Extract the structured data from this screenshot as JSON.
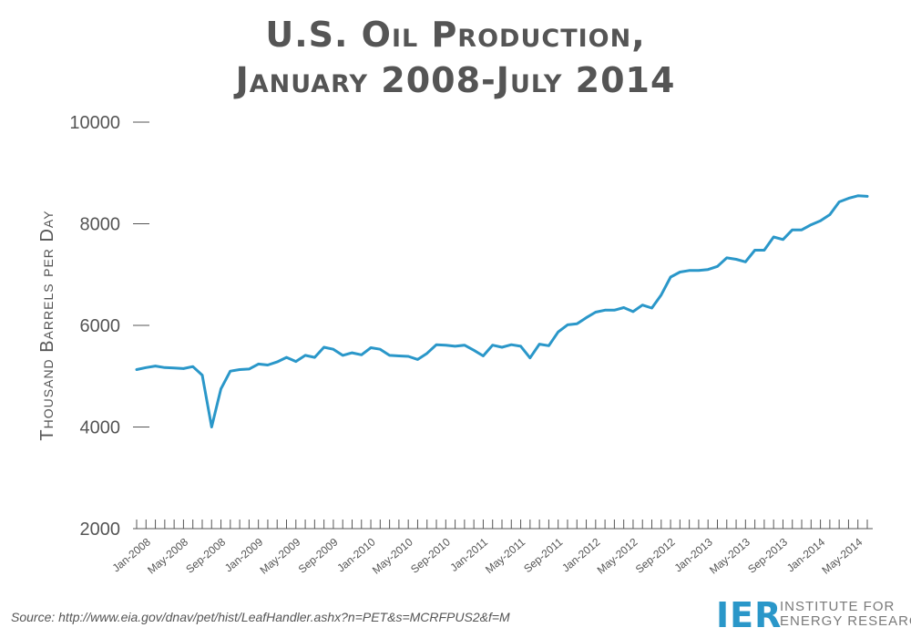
{
  "chart_data": {
    "type": "line",
    "title": "U.S. Oil Production,",
    "subtitle": "January 2008-July 2014",
    "ylabel": "Thousand Barrels per Day",
    "xlabel": "",
    "ylim": [
      2000,
      10000
    ],
    "yticks": [
      2000,
      4000,
      6000,
      8000,
      10000
    ],
    "grid": false,
    "line_color": "#2a97c9",
    "xtick_labels": [
      "Jan-2008",
      "May-2008",
      "Sep-2008",
      "Jan-2009",
      "May-2009",
      "Sep-2009",
      "Jan-2010",
      "May-2010",
      "Sep-2010",
      "Jan-2011",
      "May-2011",
      "Sep-2011",
      "Jan-2012",
      "May-2012",
      "Sep-2012",
      "Jan-2013",
      "May-2013",
      "Sep-2013",
      "Jan-2014",
      "May-2014"
    ],
    "x": [
      "Jan-2008",
      "Feb-2008",
      "Mar-2008",
      "Apr-2008",
      "May-2008",
      "Jun-2008",
      "Jul-2008",
      "Aug-2008",
      "Sep-2008",
      "Oct-2008",
      "Nov-2008",
      "Dec-2008",
      "Jan-2009",
      "Feb-2009",
      "Mar-2009",
      "Apr-2009",
      "May-2009",
      "Jun-2009",
      "Jul-2009",
      "Aug-2009",
      "Sep-2009",
      "Oct-2009",
      "Nov-2009",
      "Dec-2009",
      "Jan-2010",
      "Feb-2010",
      "Mar-2010",
      "Apr-2010",
      "May-2010",
      "Jun-2010",
      "Jul-2010",
      "Aug-2010",
      "Sep-2010",
      "Oct-2010",
      "Nov-2010",
      "Dec-2010",
      "Jan-2011",
      "Feb-2011",
      "Mar-2011",
      "Apr-2011",
      "May-2011",
      "Jun-2011",
      "Jul-2011",
      "Aug-2011",
      "Sep-2011",
      "Oct-2011",
      "Nov-2011",
      "Dec-2011",
      "Jan-2012",
      "Feb-2012",
      "Mar-2012",
      "Apr-2012",
      "May-2012",
      "Jun-2012",
      "Jul-2012",
      "Aug-2012",
      "Sep-2012",
      "Oct-2012",
      "Nov-2012",
      "Dec-2012",
      "Jan-2013",
      "Feb-2013",
      "Mar-2013",
      "Apr-2013",
      "May-2013",
      "Jun-2013",
      "Jul-2013",
      "Aug-2013",
      "Sep-2013",
      "Oct-2013",
      "Nov-2013",
      "Dec-2013",
      "Jan-2014",
      "Feb-2014",
      "Mar-2014",
      "Apr-2014",
      "May-2014",
      "Jun-2014",
      "Jul-2014"
    ],
    "series": [
      {
        "values": [
          5130,
          5170,
          5200,
          5170,
          5160,
          5150,
          5190,
          5020,
          4000,
          4750,
          5100,
          5130,
          5140,
          5240,
          5220,
          5280,
          5370,
          5290,
          5410,
          5370,
          5570,
          5530,
          5410,
          5460,
          5420,
          5560,
          5530,
          5410,
          5400,
          5390,
          5330,
          5450,
          5620,
          5610,
          5590,
          5610,
          5510,
          5400,
          5610,
          5570,
          5620,
          5590,
          5360,
          5630,
          5600,
          5870,
          6010,
          6030,
          6150,
          6260,
          6300,
          6300,
          6350,
          6270,
          6400,
          6340,
          6600,
          6950,
          7050,
          7080,
          7080,
          7100,
          7160,
          7330,
          7300,
          7250,
          7480,
          7480,
          7740,
          7690,
          7880,
          7880,
          7980,
          8060,
          8180,
          8430,
          8500,
          8550,
          8540
        ]
      }
    ]
  },
  "source_text": "Source: http://www.eia.gov/dnav/pet/hist/LeafHandler.ashx?n=PET&s=MCRFPUS2&f=M",
  "logo": {
    "mark": "IER",
    "line1": "INSTITUTE FOR",
    "line2": "ENERGY RESEARCH",
    "color": "#2a97c9"
  }
}
